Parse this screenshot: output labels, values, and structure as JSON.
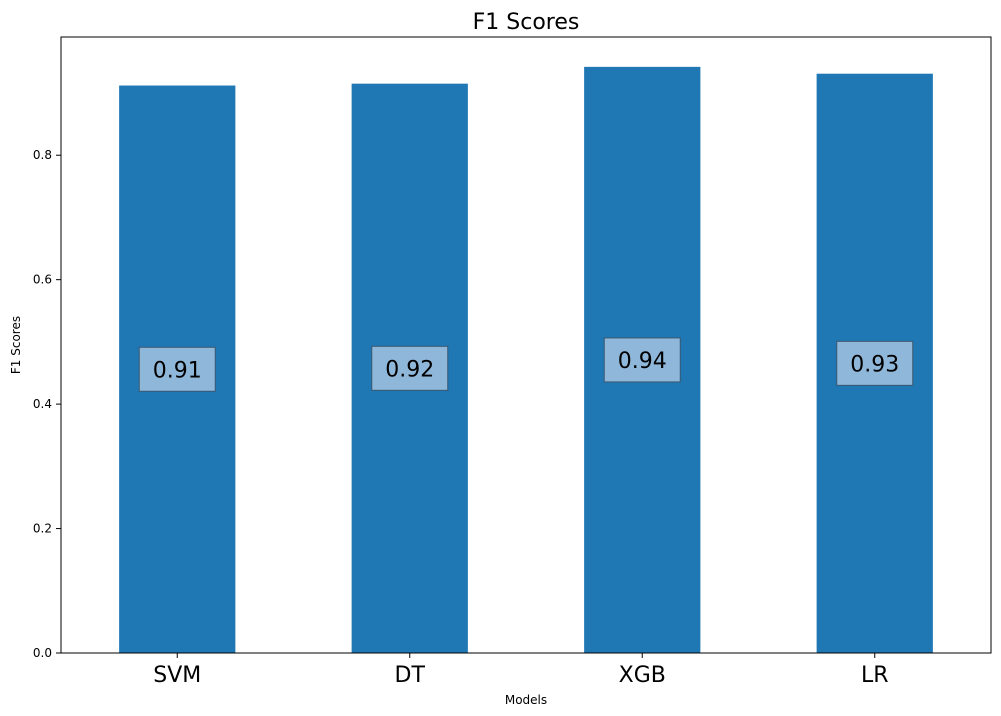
{
  "chart_data": {
    "type": "bar",
    "title": "F1 Scores",
    "xlabel": "Models",
    "ylabel": "F1 Scores",
    "categories": [
      "SVM",
      "DT",
      "XGB",
      "LR"
    ],
    "values": [
      0.912,
      0.915,
      0.942,
      0.931
    ],
    "data_labels": [
      "0.91",
      "0.92",
      "0.94",
      "0.93"
    ],
    "ylim": [
      0,
      0.99
    ],
    "yticks": [
      0.0,
      0.2,
      0.4,
      0.6,
      0.8
    ],
    "ytick_labels": [
      "0.0",
      "0.2",
      "0.4",
      "0.6",
      "0.8"
    ],
    "bar_color": "#1f77b4",
    "label_box_color": "#8fb7d9",
    "grid": false,
    "legend": "none"
  }
}
